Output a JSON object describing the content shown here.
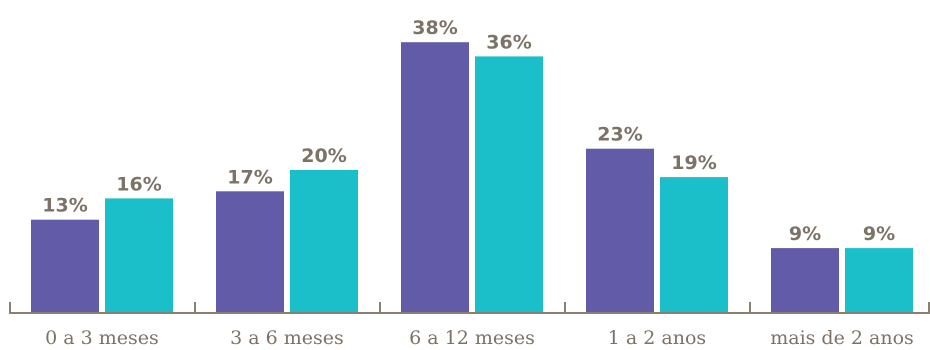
{
  "chart_data": {
    "type": "bar",
    "title": "",
    "xlabel": "",
    "ylabel": "",
    "ylim": [
      0,
      40
    ],
    "grid": false,
    "legend": "none",
    "value_suffix": "%",
    "categories": [
      "0 a 3 meses",
      "3 a 6 meses",
      "6 a 12 meses",
      "1 a 2 anos",
      "mais de 2 anos"
    ],
    "series": [
      {
        "color": "#625CA8",
        "values": [
          13,
          17,
          38,
          23,
          9
        ]
      },
      {
        "color": "#1BBFC9",
        "values": [
          16,
          20,
          36,
          19,
          9
        ]
      }
    ]
  },
  "colors": {
    "axis": "#8a7f73",
    "value_text": "#7c7267",
    "category_text": "#7c7267"
  }
}
